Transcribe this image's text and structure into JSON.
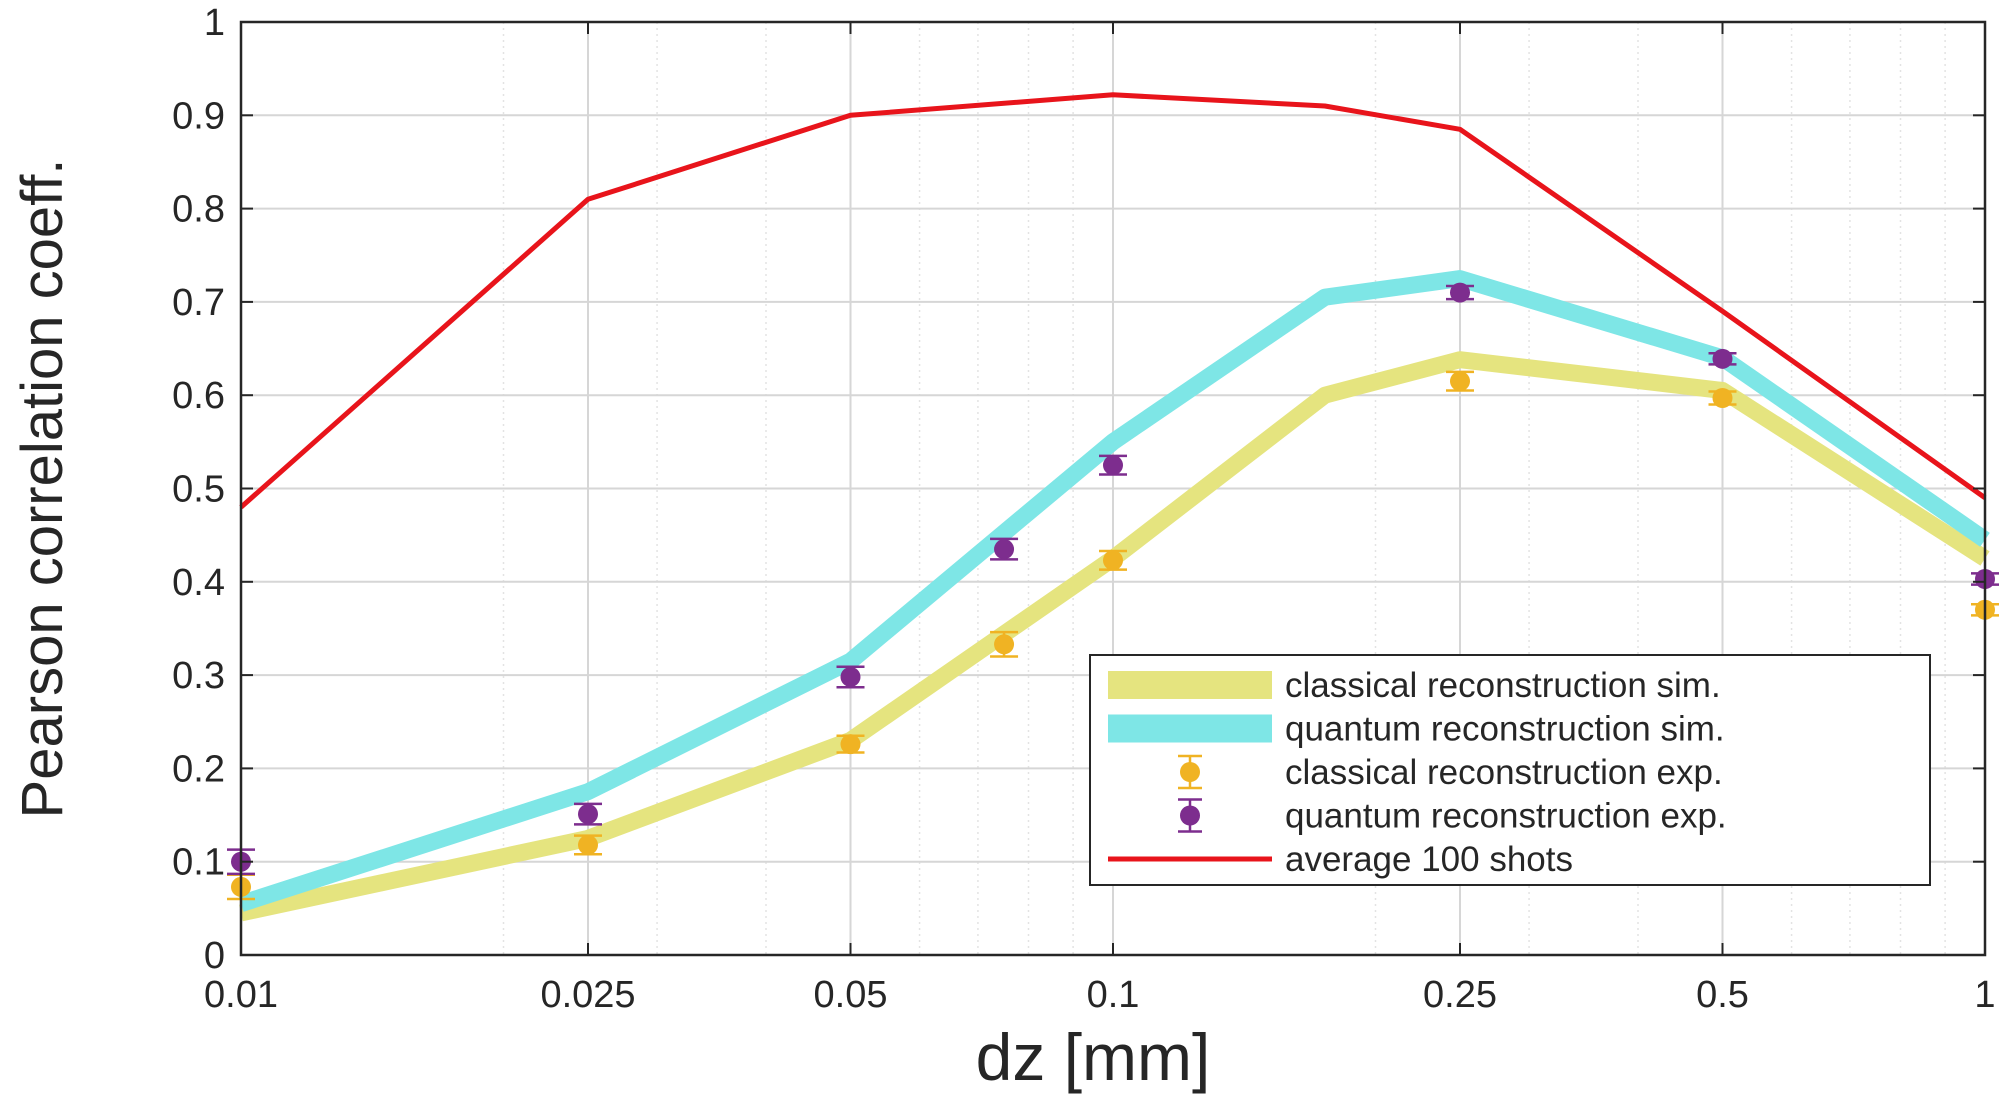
{
  "chart_data": {
    "type": "line",
    "title": "",
    "xlabel": "dz [mm]",
    "ylabel": "Pearson correlation coeff.",
    "xscale": "log",
    "xlim": [
      0.01,
      1
    ],
    "ylim": [
      0,
      1
    ],
    "grid": true,
    "legend_position": "bottom-right",
    "xticks": [
      0.01,
      0.025,
      0.05,
      0.1,
      0.25,
      0.5,
      1
    ],
    "xtick_labels": [
      "0.01",
      "0.025",
      "0.05",
      "0.1",
      "0.25",
      "0.5",
      "1"
    ],
    "yticks": [
      0,
      0.1,
      0.2,
      0.3,
      0.4,
      0.5,
      0.6,
      0.7,
      0.8,
      0.9,
      1
    ],
    "ytick_labels": [
      "0",
      "0.1",
      "0.2",
      "0.3",
      "0.4",
      "0.5",
      "0.6",
      "0.7",
      "0.8",
      "0.9",
      "1"
    ],
    "series": [
      {
        "name": "classical reconstruction sim.",
        "kind": "band",
        "color": "#e5e47f",
        "x": [
          0.01,
          0.025,
          0.05,
          0.1,
          0.175,
          0.25,
          0.5,
          1
        ],
        "y": [
          0.045,
          0.125,
          0.23,
          0.425,
          0.6,
          0.638,
          0.605,
          0.425
        ]
      },
      {
        "name": "quantum reconstruction sim.",
        "kind": "band",
        "color": "#7ee6e6",
        "x": [
          0.01,
          0.025,
          0.05,
          0.1,
          0.175,
          0.25,
          0.5,
          1
        ],
        "y": [
          0.055,
          0.175,
          0.315,
          0.55,
          0.705,
          0.725,
          0.64,
          0.445
        ]
      },
      {
        "name": "classical reconstruction exp.",
        "kind": "errorbar",
        "color": "#f0b323",
        "x": [
          0.01,
          0.025,
          0.05,
          0.075,
          0.1,
          0.25,
          0.5,
          1
        ],
        "y": [
          0.073,
          0.118,
          0.226,
          0.333,
          0.423,
          0.615,
          0.597,
          0.37
        ],
        "err": [
          0.013,
          0.01,
          0.009,
          0.013,
          0.01,
          0.01,
          0.007,
          0.006
        ]
      },
      {
        "name": "quantum reconstruction exp.",
        "kind": "errorbar",
        "color": "#7d2d8e",
        "x": [
          0.01,
          0.025,
          0.05,
          0.075,
          0.1,
          0.25,
          0.5,
          1
        ],
        "y": [
          0.1,
          0.151,
          0.298,
          0.435,
          0.525,
          0.71,
          0.639,
          0.403
        ],
        "err": [
          0.013,
          0.011,
          0.011,
          0.011,
          0.01,
          0.007,
          0.006,
          0.006
        ]
      },
      {
        "name": "average 100 shots",
        "kind": "line",
        "color": "#e8141b",
        "x": [
          0.01,
          0.025,
          0.05,
          0.1,
          0.175,
          0.25,
          0.5,
          1
        ],
        "y": [
          0.48,
          0.81,
          0.9,
          0.922,
          0.91,
          0.885,
          0.69,
          0.49
        ]
      }
    ]
  }
}
